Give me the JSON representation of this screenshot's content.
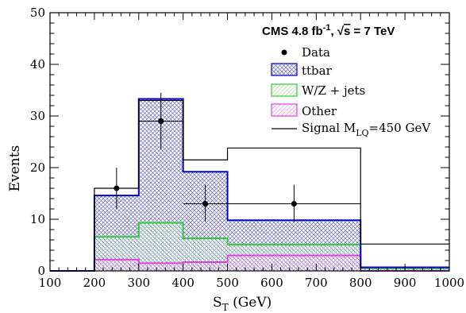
{
  "chart_data": {
    "type": "bar",
    "title": "CMS 4.8 fb",
    "title_sup": "-1",
    "title_sep": ", ",
    "title_sqrt_var": "s",
    "title_tail": " = 7 TeV",
    "xlabel": "S",
    "xlabel_sub": "T",
    "xlabel_unit": " (GeV)",
    "ylabel": "Events",
    "xlim": [
      100,
      1000
    ],
    "ylim": [
      0,
      50
    ],
    "x_ticks": [
      "100",
      "200",
      "300",
      "400",
      "500",
      "600",
      "700",
      "800",
      "900",
      "1000"
    ],
    "y_ticks": [
      "0",
      "10",
      "20",
      "30",
      "40",
      "50"
    ],
    "bin_edges": [
      100,
      200,
      300,
      400,
      500,
      800,
      1000
    ],
    "stacked_series": [
      {
        "name": "Other",
        "color": "#e040e0",
        "values": [
          0.0,
          2.2,
          1.5,
          1.7,
          3.0,
          0.0
        ]
      },
      {
        "name": "W/Z + jets",
        "color": "#33cc33",
        "values": [
          0.0,
          4.4,
          7.8,
          4.6,
          2.1,
          0.5
        ]
      },
      {
        "name": "ttbar",
        "color": "#0000cc",
        "values": [
          0.0,
          8.0,
          24.0,
          12.9,
          4.7,
          0.2
        ]
      }
    ],
    "signal": {
      "name": "Signal M",
      "name_sub": "LQ",
      "name_tail": "=450 GeV",
      "color": "#000000",
      "values": [
        0.0,
        16.0,
        33.0,
        21.5,
        23.8,
        5.2
      ]
    },
    "data": {
      "name": "Data",
      "points": [
        {
          "x": 250,
          "xlo": 200,
          "xhi": 300,
          "y": 16,
          "ylo": 12,
          "yhi": 20
        },
        {
          "x": 350,
          "xlo": 300,
          "xhi": 400,
          "y": 29,
          "ylo": 23.5,
          "yhi": 34.5
        },
        {
          "x": 450,
          "xlo": 400,
          "xhi": 500,
          "y": 13,
          "ylo": 9.5,
          "yhi": 16.7
        },
        {
          "x": 650,
          "xlo": 500,
          "xhi": 800,
          "y": 13,
          "ylo": 9.5,
          "yhi": 16.7
        }
      ]
    },
    "legend": {
      "position": "top-right",
      "entries": [
        {
          "key": "data",
          "label": "Data"
        },
        {
          "key": "ttbar",
          "label": "ttbar"
        },
        {
          "key": "wz",
          "label": "W/Z + jets"
        },
        {
          "key": "other",
          "label": "Other"
        },
        {
          "key": "signal",
          "label": "Signal M"
        }
      ]
    }
  }
}
